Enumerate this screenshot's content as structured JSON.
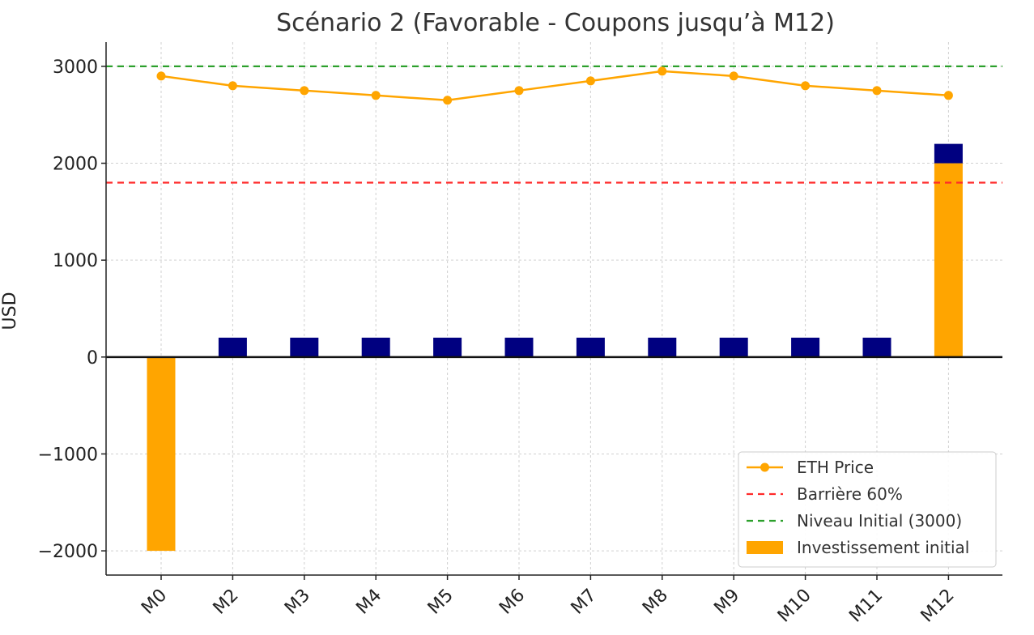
{
  "chart_data": {
    "type": "bar",
    "title": "Scénario 2 (Favorable - Coupons jusqu’à M12)",
    "xlabel": "",
    "ylabel": "USD",
    "categories": [
      "M0",
      "M2",
      "M3",
      "M4",
      "M5",
      "M6",
      "M7",
      "M8",
      "M9",
      "M10",
      "M11",
      "M12"
    ],
    "ylim": [
      -2250,
      3250
    ],
    "yticks": [
      3000,
      2000,
      1000,
      0,
      -1000,
      -2000
    ],
    "ytick_labels": [
      "3000",
      "2000",
      "1000",
      "0",
      "−1000",
      "−2000"
    ],
    "grid": true,
    "legend_position": "bottom-right",
    "series": [
      {
        "name": "ETH Price",
        "type": "line",
        "color": "#FFA500",
        "values": [
          2900,
          2800,
          2750,
          2700,
          2650,
          2750,
          2850,
          2950,
          2900,
          2800,
          2750,
          2700
        ]
      },
      {
        "name": "Investissement initial",
        "type": "bar",
        "color": "#FFA500",
        "values": [
          -2000,
          0,
          0,
          0,
          0,
          0,
          0,
          0,
          0,
          0,
          0,
          2000
        ]
      },
      {
        "type": "bar",
        "color": "#000080",
        "values": [
          0,
          200,
          200,
          200,
          200,
          200,
          200,
          200,
          200,
          200,
          200,
          200
        ],
        "stacked_on": "Investissement initial"
      }
    ],
    "reference_lines": [
      {
        "name": "Barrière 60%",
        "value": 1800,
        "color": "#FF2A2A",
        "style": "dashed"
      },
      {
        "name": "Niveau Initial (3000)",
        "value": 3000,
        "color": "#2CA02C",
        "style": "dashed"
      }
    ],
    "legend": [
      {
        "label": "ETH Price",
        "kind": "line-marker",
        "color": "#FFA500"
      },
      {
        "label": "Barrière 60%",
        "kind": "dashed",
        "color": "#FF2A2A"
      },
      {
        "label": "Niveau Initial (3000)",
        "kind": "dashed",
        "color": "#2CA02C"
      },
      {
        "label": "Investissement initial",
        "kind": "patch",
        "color": "#FFA500"
      }
    ]
  }
}
